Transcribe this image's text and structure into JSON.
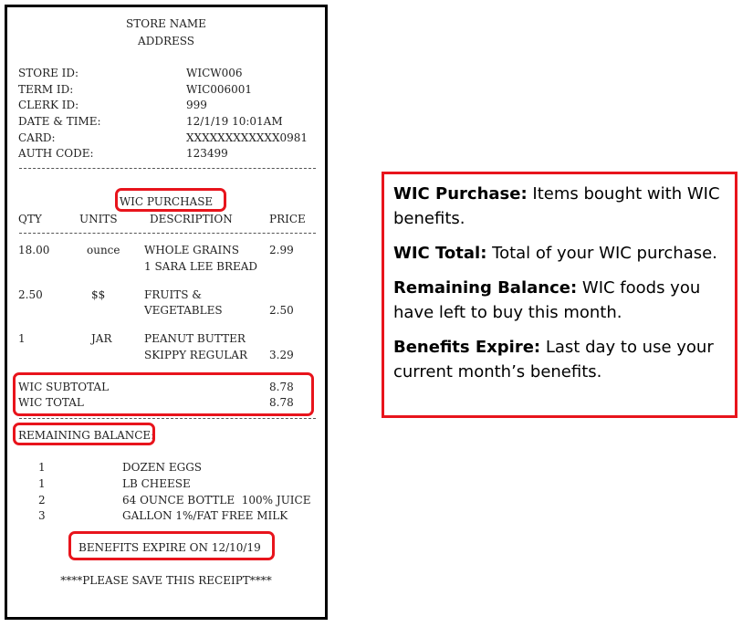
{
  "receipt": {
    "store_name": "STORE NAME",
    "address": "ADDRESS",
    "info": [
      {
        "label": "STORE ID:",
        "value": "WICW006"
      },
      {
        "label": "TERM ID:",
        "value": "WIC006001"
      },
      {
        "label": "CLERK ID:",
        "value": "999"
      },
      {
        "label": "DATE & TIME:",
        "value": "12/1/19 10:01AM"
      },
      {
        "label": "CARD:",
        "value": "XXXXXXXXXXXX0981"
      },
      {
        "label": "AUTH CODE:",
        "value": "123499"
      }
    ],
    "section_title": "WIC PURCHASE",
    "columns": {
      "qty": "QTY",
      "units": "UNITS",
      "description": "DESCRIPTION",
      "price": "PRICE"
    },
    "items": [
      {
        "qty": "18.00",
        "units": "ounce",
        "desc1": "WHOLE GRAINS",
        "desc2": "1 SARA LEE BREAD",
        "price": "2.99"
      },
      {
        "qty": "2.50",
        "units": "$$",
        "desc1": "FRUITS &",
        "desc2": "VEGETABLES",
        "price": "2.50"
      },
      {
        "qty": "1",
        "units": "JAR",
        "desc1": "PEANUT BUTTER",
        "desc2": "SKIPPY REGULAR",
        "price": "3.29"
      }
    ],
    "subtotal_label": "WIC SUBTOTAL",
    "subtotal": "8.78",
    "total_label": "WIC TOTAL",
    "total": "8.78",
    "remaining_label": "REMAINING BALANCE:",
    "remaining": [
      {
        "qty": "1",
        "item": "DOZEN EGGS"
      },
      {
        "qty": "1",
        "item": "LB CHEESE"
      },
      {
        "qty": "2",
        "item": "64 OUNCE BOTTLE  100% JUICE"
      },
      {
        "qty": "3",
        "item": "GALLON 1%/FAT FREE MILK"
      }
    ],
    "expire": "BENEFITS EXPIRE ON 12/10/19",
    "footer": "****PLEASE SAVE THIS RECEIPT****"
  },
  "legend": [
    {
      "term": "WIC Purchase:",
      "text": " Items bought with WIC benefits."
    },
    {
      "term": "WIC Total:",
      "text": " Total of your WIC purchase."
    },
    {
      "term": "Remaining Balance:",
      "text": " WIC foods you have left to buy this month."
    },
    {
      "term": "Benefits Expire:",
      "text": " Last day to use your current month’s benefits."
    }
  ],
  "highlight_color": "#e8141c"
}
